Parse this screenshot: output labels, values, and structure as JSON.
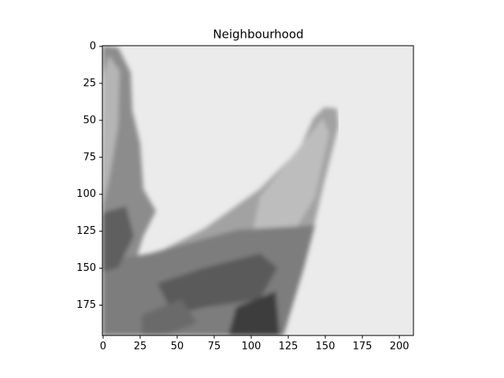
{
  "chart_data": {
    "type": "image",
    "title": "Neighbourhood",
    "xlim": [
      -0.5,
      209.5
    ],
    "ylim": [
      195.5,
      -0.5
    ],
    "xticks": [
      0,
      25,
      50,
      75,
      100,
      125,
      150,
      175,
      200
    ],
    "yticks": [
      0,
      25,
      50,
      75,
      100,
      125,
      150,
      175
    ],
    "cmap": "gray"
  }
}
